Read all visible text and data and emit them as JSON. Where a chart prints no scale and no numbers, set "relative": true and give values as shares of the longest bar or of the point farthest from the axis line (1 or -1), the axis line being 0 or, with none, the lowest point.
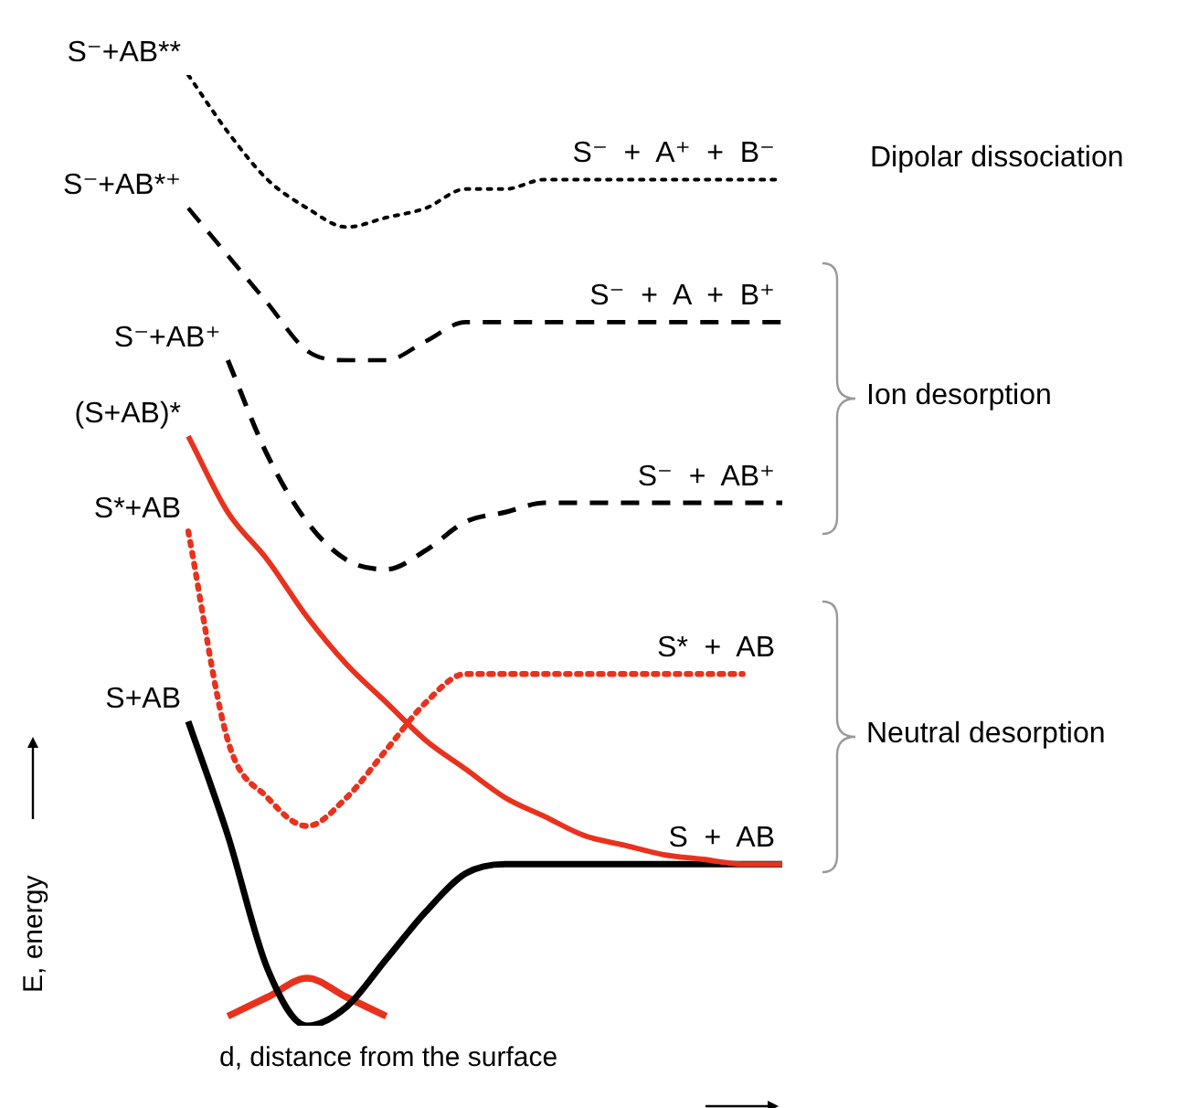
{
  "chart_data": {
    "type": "line",
    "relative": true,
    "marker": "none",
    "xlabel": "d, distance from the surface",
    "ylabel": "E, energy",
    "categories": [
      null,
      null,
      null,
      null,
      null,
      null,
      null,
      null,
      null,
      null,
      null,
      null,
      null,
      null,
      null,
      null
    ],
    "series": [
      {
        "name": "S⁻+AB**",
        "color": "#000000",
        "line_style": "dotted",
        "values": [
          1.0,
          0.94,
          0.89,
          0.86,
          0.84,
          0.85,
          0.86,
          0.88,
          0.88,
          0.89,
          0.89,
          0.89,
          0.89,
          0.89,
          0.89,
          0.89
        ]
      },
      {
        "name": "S⁻+AB*⁺",
        "color": "#000000",
        "line_style": "dashed",
        "values": [
          0.86,
          0.81,
          0.76,
          0.71,
          0.7,
          0.7,
          0.72,
          0.74,
          0.74,
          0.74,
          0.74,
          0.74,
          0.74,
          0.74,
          0.74,
          0.74
        ]
      },
      {
        "name": "S⁻+AB⁺",
        "color": "#000000",
        "line_style": "dashed",
        "values": [
          null,
          0.7,
          0.6,
          0.53,
          0.49,
          0.48,
          0.5,
          0.53,
          0.54,
          0.55,
          0.55,
          0.55,
          0.55,
          0.55,
          0.55,
          0.55
        ]
      },
      {
        "name": "(S+AB)*",
        "color": "#e8321e",
        "line_style": "solid",
        "values": [
          0.62,
          0.54,
          0.49,
          0.43,
          0.38,
          0.34,
          0.3,
          0.27,
          0.24,
          0.22,
          0.2,
          0.19,
          0.18,
          0.175,
          0.17,
          0.17
        ]
      },
      {
        "name": "S*+AB",
        "color": "#e8321e",
        "line_style": "dotted",
        "values": [
          0.52,
          0.3,
          0.24,
          0.21,
          0.24,
          0.29,
          0.34,
          0.37,
          0.37,
          0.37,
          0.37,
          0.37,
          0.37,
          0.37,
          0.37,
          null
        ]
      },
      {
        "name": "S+AB",
        "color": "#000000",
        "line_style": "solid",
        "values": [
          0.32,
          0.2,
          0.06,
          0,
          0.02,
          0.07,
          0.12,
          0.16,
          0.17,
          0.17,
          0.17,
          0.17,
          0.17,
          0.17,
          0.17,
          0.17
        ]
      },
      {
        "color": "#e8321e",
        "line_style": "solid",
        "values": [
          null,
          0.01,
          0.03,
          0.05,
          0.03,
          0.01,
          null,
          null,
          null,
          null,
          null,
          null,
          null,
          null,
          null,
          null
        ]
      }
    ],
    "annotations": [
      {
        "text": "S⁻  +  A⁺  +  B⁻",
        "y": 0.89
      },
      {
        "text": "S⁻  +  A  +  B⁺",
        "y": 0.74
      },
      {
        "text": "S⁻  +  AB⁺",
        "y": 0.55
      },
      {
        "text": "S*  +  AB",
        "y": 0.37
      },
      {
        "text": "S  +  AB",
        "y": 0.17
      },
      "Dipolar dissociation",
      "Ion desorption",
      "Neutral desorption"
    ]
  }
}
